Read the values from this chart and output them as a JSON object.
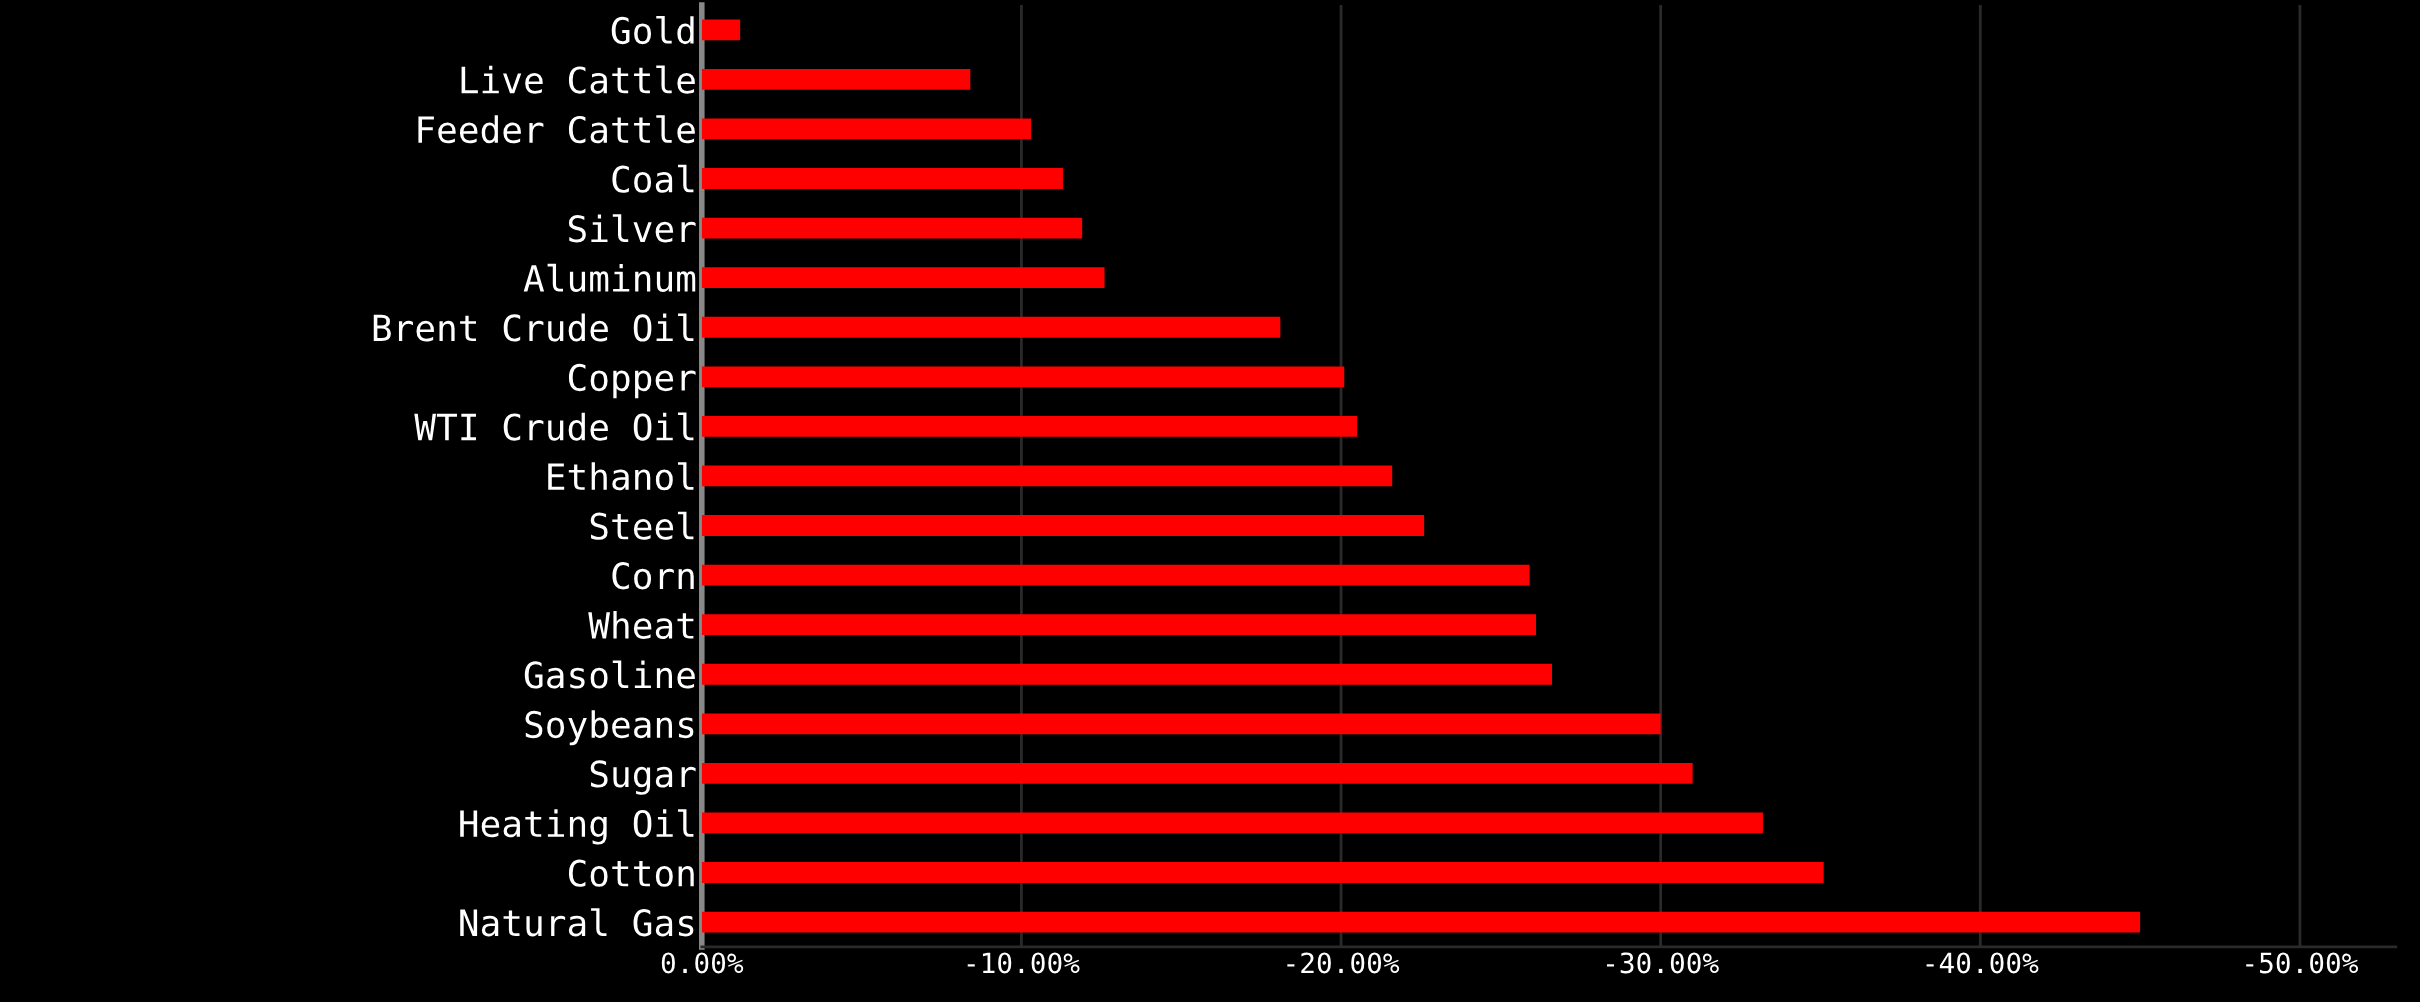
{
  "chart_data": {
    "type": "bar",
    "orientation": "horizontal",
    "categories": [
      "Gold",
      "Live Cattle",
      "Feeder Cattle",
      "Coal",
      "Silver",
      "Aluminum",
      "Brent Crude Oil",
      "Copper",
      "WTI Crude Oil",
      "Ethanol",
      "Steel",
      "Corn",
      "Wheat",
      "Gasoline",
      "Soybeans",
      "Sugar",
      "Heating Oil",
      "Cotton",
      "Natural Gas"
    ],
    "values": [
      -1.2,
      -8.4,
      -10.3,
      -11.3,
      -11.9,
      -12.6,
      -18.1,
      -20.1,
      -20.5,
      -21.6,
      -22.6,
      -25.9,
      -26.1,
      -26.6,
      -30.0,
      -31.0,
      -33.2,
      -35.1,
      -45.0
    ],
    "color": "#ff0000",
    "xlim": [
      0,
      -53
    ],
    "xticks": [
      {
        "value": 0,
        "label": "0.00%"
      },
      {
        "value": -10,
        "label": "-10.00%"
      },
      {
        "value": -20,
        "label": "-20.00%"
      },
      {
        "value": -30,
        "label": "-30.00%"
      },
      {
        "value": -40,
        "label": "-40.00%"
      },
      {
        "value": -50,
        "label": "-50.00%"
      }
    ],
    "grid": "x",
    "legend": false
  }
}
